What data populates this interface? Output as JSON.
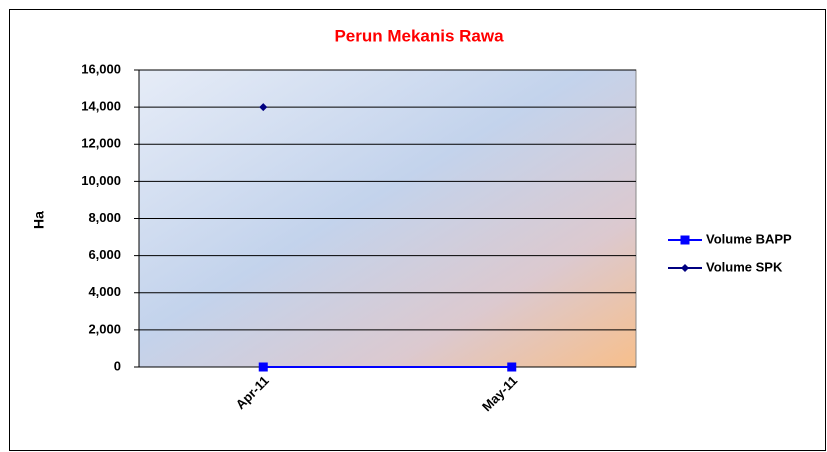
{
  "chart_data": {
    "type": "line",
    "title": "Perun Mekanis Rawa",
    "y_label": "Ha",
    "categories": [
      "Apr-11",
      "May-11"
    ],
    "series": [
      {
        "name": "Volume BAPP",
        "color": "#0000ff",
        "marker": "square",
        "values": [
          0,
          0
        ]
      },
      {
        "name": "Volume SPK",
        "color": "#000080",
        "marker": "diamond",
        "values": [
          14000,
          null
        ]
      }
    ],
    "ylim": [
      0,
      16000
    ],
    "yticks": [
      0,
      {
        "value": 2000,
        "label": "2,000"
      },
      {
        "value": 4000,
        "label": "4,000"
      },
      {
        "value": 6000,
        "label": "6,000"
      },
      {
        "value": 8000,
        "label": "8,000"
      },
      {
        "value": 10000,
        "label": "10,000"
      },
      {
        "value": 12000,
        "label": "12,000"
      },
      {
        "value": 14000,
        "label": "14,000"
      },
      {
        "value": 16000,
        "label": "16,000"
      }
    ],
    "grid": true,
    "legend": "right"
  }
}
